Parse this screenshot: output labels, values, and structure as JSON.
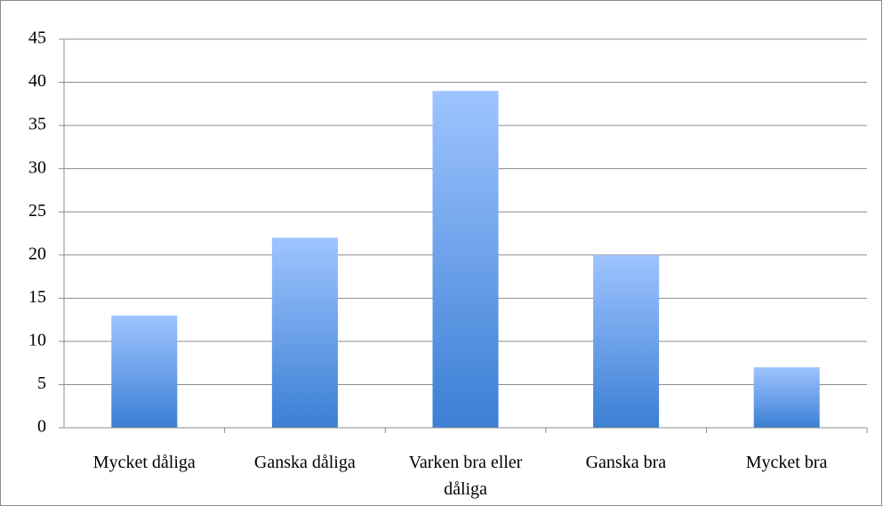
{
  "chart_data": {
    "type": "bar",
    "categories": [
      "Mycket dåliga",
      "Ganska dåliga",
      "Varken bra eller dåliga",
      "Ganska bra",
      "Mycket bra"
    ],
    "values": [
      13,
      22,
      39,
      20,
      7
    ],
    "color": "#3b7fd4",
    "color_top": "#9ec4ff",
    "ylim": [
      0,
      45
    ],
    "yticks": [
      0,
      5,
      10,
      15,
      20,
      25,
      30,
      35,
      40,
      45
    ],
    "grid": true
  }
}
